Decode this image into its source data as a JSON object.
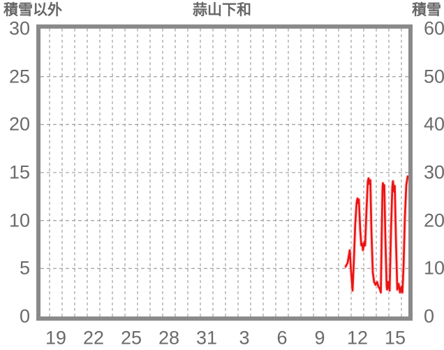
{
  "header": {
    "left_axis_title": "積雪以外",
    "station_name": "蒜山下和",
    "right_axis_title": "積雪"
  },
  "colors": {
    "background": "#ffffff",
    "plot_border": "#8a8a8a",
    "gridline": "#a6a6a6",
    "text": "#6a6a6a",
    "series_red": "#ec1313",
    "series_red_halo": "#ffc2c2"
  },
  "chart_data": {
    "type": "line",
    "title": "蒜山下和",
    "legend": "none",
    "grid": "dashed",
    "left_axis": {
      "title": "積雪以外",
      "min": 0,
      "max": 30,
      "tick_values": [
        30,
        25,
        20,
        15,
        10,
        5,
        0
      ],
      "tick_labels": [
        "30",
        "25",
        "20",
        "15",
        "10",
        "5",
        "0"
      ]
    },
    "right_axis": {
      "title": "積雪",
      "min": 0,
      "max": 60,
      "tick_values": [
        60,
        50,
        40,
        30,
        20,
        10,
        0
      ],
      "tick_labels": [
        "60",
        "50",
        "40",
        "30",
        "20",
        "10",
        "0"
      ]
    },
    "x_axis": {
      "tick_labels": [
        "19",
        "22",
        "25",
        "28",
        "31",
        "3",
        "6",
        "9",
        "12",
        "15"
      ],
      "tick_day_offsets": [
        0.5,
        3.5,
        6.5,
        9.5,
        12.5,
        15.5,
        18.5,
        21.5,
        24.5,
        27.5
      ],
      "gridline_count": 29,
      "gridline_interval_days": 1,
      "note": "day offsets measured in days from the Dec-19 gridline; labels sit centered inside each day interval"
    },
    "horizontal_gridline_values": [
      5,
      10,
      15,
      20,
      25
    ],
    "series": [
      {
        "name": "red-line",
        "axis": "left",
        "color": "#ec1313",
        "points": [
          [
            23.56,
            5.2
          ],
          [
            23.72,
            5.6
          ],
          [
            23.89,
            6.9
          ],
          [
            24.0,
            4.6
          ],
          [
            24.11,
            2.7
          ],
          [
            24.22,
            6.0
          ],
          [
            24.33,
            9.7
          ],
          [
            24.44,
            11.9
          ],
          [
            24.5,
            12.3
          ],
          [
            24.56,
            11.8
          ],
          [
            24.61,
            12.2
          ],
          [
            24.72,
            9.0
          ],
          [
            24.81,
            7.4
          ],
          [
            24.89,
            7.6
          ],
          [
            24.94,
            6.9
          ],
          [
            25.06,
            7.8
          ],
          [
            25.11,
            7.4
          ],
          [
            25.22,
            11.1
          ],
          [
            25.33,
            14.1
          ],
          [
            25.39,
            14.4
          ],
          [
            25.47,
            13.8
          ],
          [
            25.53,
            14.2
          ],
          [
            25.61,
            9.0
          ],
          [
            25.72,
            4.6
          ],
          [
            25.83,
            3.6
          ],
          [
            25.94,
            3.3
          ],
          [
            26.06,
            3.6
          ],
          [
            26.17,
            3.1
          ],
          [
            26.28,
            2.9
          ],
          [
            26.36,
            2.5
          ],
          [
            26.44,
            9.0
          ],
          [
            26.5,
            13.5
          ],
          [
            26.53,
            13.9
          ],
          [
            26.58,
            13.2
          ],
          [
            26.64,
            13.7
          ],
          [
            26.72,
            8.2
          ],
          [
            26.83,
            3.1
          ],
          [
            26.86,
            2.8
          ],
          [
            26.94,
            3.6
          ],
          [
            27.06,
            2.7
          ],
          [
            27.17,
            9.0
          ],
          [
            27.28,
            13.5
          ],
          [
            27.33,
            14.1
          ],
          [
            27.42,
            13.0
          ],
          [
            27.47,
            13.6
          ],
          [
            27.56,
            8.2
          ],
          [
            27.67,
            2.8
          ],
          [
            27.78,
            3.4
          ],
          [
            27.89,
            2.5
          ],
          [
            28.0,
            3.1
          ],
          [
            28.08,
            2.5
          ],
          [
            28.17,
            5.3
          ],
          [
            28.28,
            10.4
          ],
          [
            28.39,
            13.7
          ],
          [
            28.5,
            14.6
          ]
        ]
      }
    ]
  }
}
